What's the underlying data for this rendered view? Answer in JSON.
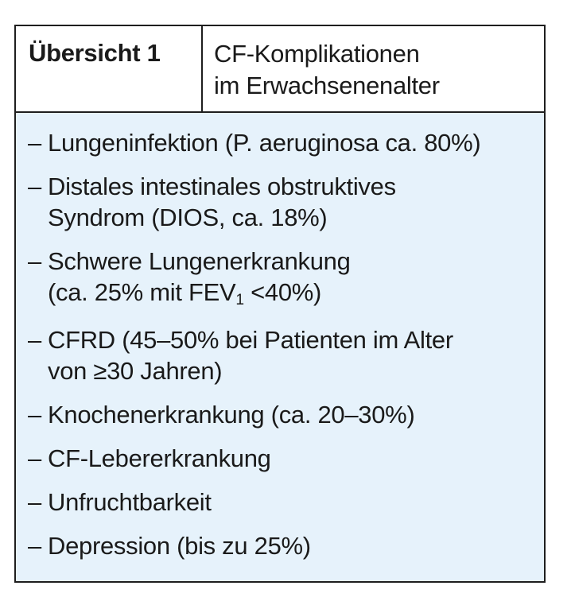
{
  "header": {
    "label": "Übersicht 1",
    "title_line1": "CF-Komplikationen",
    "title_line2": "im Erwachsenenalter"
  },
  "list": {
    "marker": "–",
    "items": [
      {
        "lines": [
          "Lungeninfektion (P. aeruginosa ca. 80%)"
        ]
      },
      {
        "lines": [
          "Distales intestinales obstruktives",
          "Syndrom (DIOS, ca. 18%)"
        ]
      },
      {
        "lines": [
          "Schwere Lungenerkrankung"
        ],
        "line2_parts": {
          "pre": "(ca. 25% mit FEV",
          "sub": "1",
          "post": " <40%)"
        }
      },
      {
        "lines": [
          "CFRD (45–50% bei Patienten im Alter",
          "von ≥30 Jahren)"
        ]
      },
      {
        "lines": [
          "Knochenerkrankung (ca. 20–30%)"
        ]
      },
      {
        "lines": [
          "CF-Lebererkrankung"
        ]
      },
      {
        "lines": [
          "Unfruchtbarkeit"
        ]
      },
      {
        "lines": [
          "Depression (bis zu 25%)"
        ]
      }
    ]
  },
  "colors": {
    "body_bg": "#e6f2fb",
    "border": "#1e1e1e",
    "text": "#1a1a1a"
  }
}
